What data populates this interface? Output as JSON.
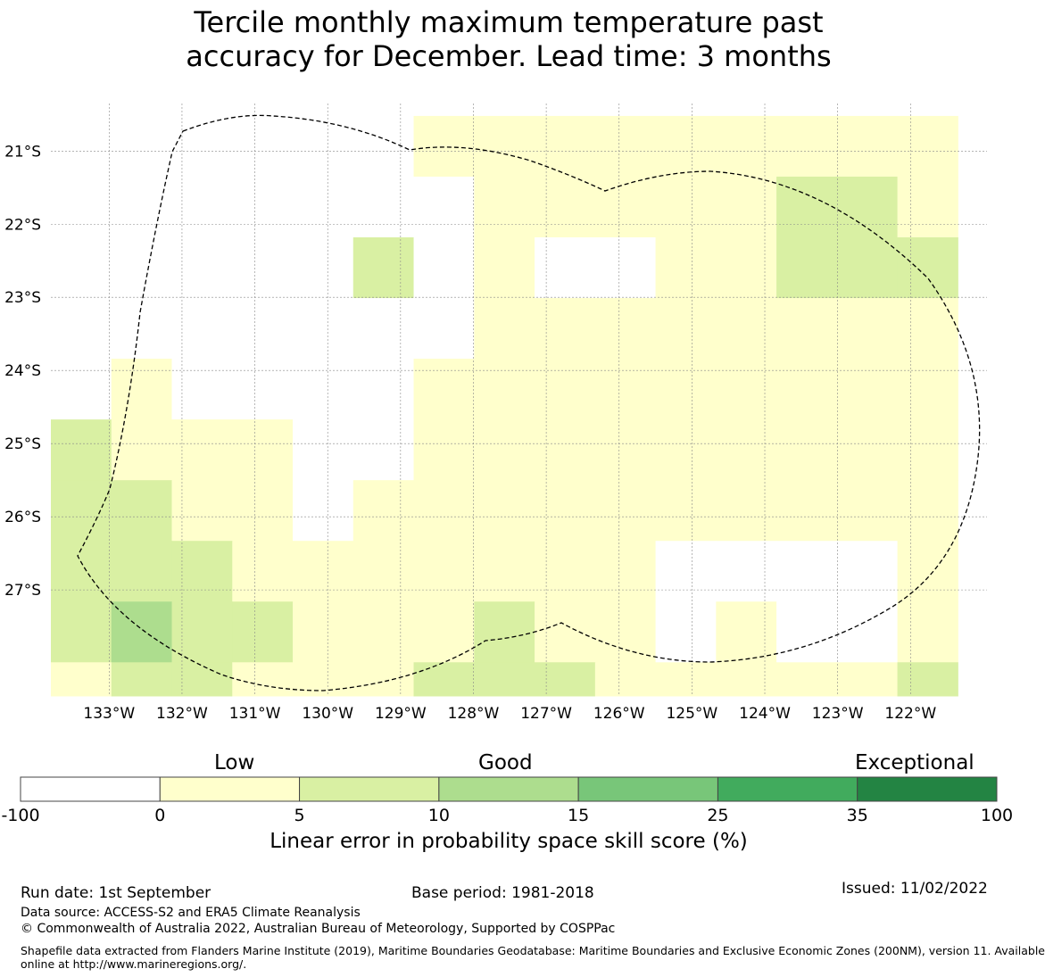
{
  "title": {
    "line1": "Tercile monthly maximum temperature past",
    "line2": "accuracy for December. Lead time: 3 months"
  },
  "map": {
    "lon_labels": [
      "133°W",
      "132°W",
      "131°W",
      "130°W",
      "129°W",
      "128°W",
      "127°W",
      "126°W",
      "125°W",
      "124°W",
      "123°W",
      "122°W"
    ],
    "lat_labels": [
      "21°S",
      "22°S",
      "23°S",
      "24°S",
      "25°S",
      "26°S",
      "27°S"
    ],
    "extent": {
      "lon_min": -133.8,
      "lon_max": -120.95,
      "lat_min": -28.45,
      "lat_max": -20.35
    },
    "cell_size_deg": 0.83,
    "grid_origin": {
      "lon": -133.8,
      "lat": -20.52
    },
    "columns": 15,
    "rows": 10,
    "cells": [
      [
        "w",
        "w",
        "w",
        "w",
        "w",
        "w",
        "y",
        "y",
        "y",
        "y",
        "y",
        "y",
        "y",
        "y",
        "y"
      ],
      [
        "w",
        "w",
        "w",
        "w",
        "w",
        "w",
        "w",
        "y",
        "y",
        "y",
        "y",
        "y",
        "g",
        "g",
        "y"
      ],
      [
        "w",
        "w",
        "w",
        "w",
        "w",
        "g",
        "w",
        "y",
        "w",
        "w",
        "y",
        "y",
        "g",
        "g",
        "g"
      ],
      [
        "w",
        "w",
        "w",
        "w",
        "w",
        "w",
        "w",
        "y",
        "y",
        "y",
        "y",
        "y",
        "y",
        "y",
        "y"
      ],
      [
        "w",
        "y",
        "w",
        "w",
        "w",
        "w",
        "y",
        "y",
        "y",
        "y",
        "y",
        "y",
        "y",
        "y",
        "y"
      ],
      [
        "g",
        "y",
        "y",
        "y",
        "w",
        "w",
        "y",
        "y",
        "y",
        "y",
        "y",
        "y",
        "y",
        "y",
        "y"
      ],
      [
        "g",
        "g",
        "y",
        "y",
        "w",
        "y",
        "y",
        "y",
        "y",
        "y",
        "y",
        "y",
        "y",
        "y",
        "y"
      ],
      [
        "g",
        "g",
        "g",
        "y",
        "y",
        "y",
        "y",
        "y",
        "y",
        "y",
        "w",
        "w",
        "w",
        "w",
        "y"
      ],
      [
        "g",
        "m",
        "g",
        "g",
        "y",
        "y",
        "y",
        "g",
        "y",
        "y",
        "w",
        "y",
        "w",
        "w",
        "y"
      ],
      [
        "y",
        "g",
        "g",
        "y",
        "y",
        "y",
        "g",
        "g",
        "g",
        "y",
        "y",
        "y",
        "y",
        "y",
        "g"
      ]
    ],
    "legend_colors": {
      "w": "#ffffff",
      "y": "#ffffcc",
      "g": "#d9f0a3",
      "m": "#addd8e",
      "d": "#78c679"
    }
  },
  "colorbar": {
    "category_labels": [
      "Low",
      "Good",
      "Exceptional"
    ],
    "ticks": [
      "-100",
      "0",
      "5",
      "10",
      "15",
      "25",
      "35",
      "100"
    ],
    "colors": [
      "#ffffff",
      "#ffffcc",
      "#d9f0a3",
      "#addd8e",
      "#78c679",
      "#41ab5d",
      "#238443"
    ],
    "title": "Linear error in probability space skill score (%)"
  },
  "footer": {
    "run_date": "Run date: 1st September",
    "base_period": "Base period: 1981-2018",
    "issued": "Issued: 11/02/2022",
    "data_source": "Data source: ACCESS-S2 and ERA5 Climate Reanalysis",
    "copyright": "© Commonwealth of Australia 2022, Australian Bureau of Meteorology, Supported by COSPPac",
    "shapefile_line1": "Shapefile data extracted from Flanders Marine Institute (2019), Maritime Boundaries Geodatabase: Maritime Boundaries and Exclusive Economic Zones (200NM), version 11. Available",
    "shapefile_line2": "online at http://www.marineregions.org/."
  }
}
